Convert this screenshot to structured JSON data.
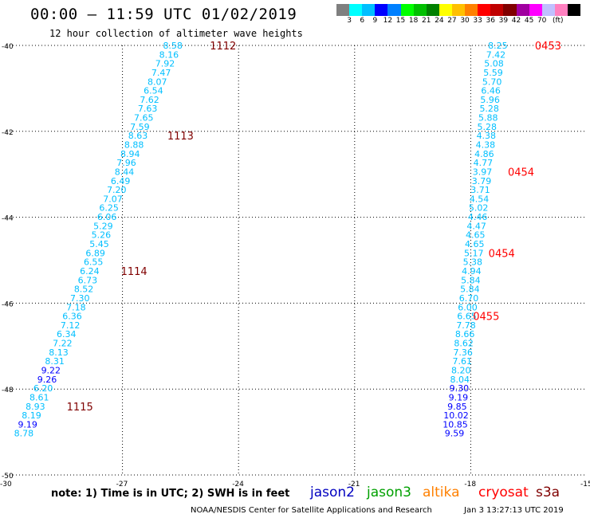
{
  "header": {
    "title": "00:00 – 11:59 UTC 01/02/2019",
    "subtitle": "12 hour collection of altimeter wave heights"
  },
  "colorbar": {
    "colors": [
      "#7f7f7f",
      "#00ffff",
      "#00bfff",
      "#0000ff",
      "#0080ff",
      "#00ff00",
      "#00c000",
      "#008000",
      "#ffff00",
      "#ffc000",
      "#ff8000",
      "#ff0000",
      "#c00000",
      "#800000",
      "#a000a0",
      "#ff00ff",
      "#c0c0ff",
      "#ff80c0",
      "#000000"
    ],
    "labels": [
      "3",
      "6",
      "9",
      "12",
      "15",
      "18",
      "21",
      "24",
      "27",
      "30",
      "33",
      "36",
      "39",
      "42",
      "45",
      "70",
      "(ft)"
    ]
  },
  "footer": {
    "note": "note: 1) Time is in UTC; 2) SWH is in feet",
    "credit": "NOAA/NESDIS Center for Satellite Applications and Research",
    "generated": "Jan  3 13:27:13 UTC 2019"
  },
  "legend": [
    {
      "name": "jason2",
      "color": "#0000c0"
    },
    {
      "name": "jason3",
      "color": "#00a000"
    },
    {
      "name": "altika",
      "color": "#ff8000"
    },
    {
      "name": "cryosat",
      "color": "#ff0000"
    },
    {
      "name": "s3a",
      "color": "#800000"
    }
  ],
  "chart_data": {
    "type": "scatter",
    "xlim": [
      -30,
      -15
    ],
    "ylim": [
      -50,
      -40
    ],
    "xticks": [
      -30,
      -27,
      -24,
      -21,
      -18,
      -15
    ],
    "yticks": [
      -50,
      -48,
      -46,
      -44,
      -42,
      -40
    ],
    "grid": true,
    "tracks": [
      {
        "name": "left-track",
        "points": [
          {
            "x": -25.7,
            "y": -40.0,
            "v": "8.58",
            "c": "#00bfff"
          },
          {
            "x": -25.8,
            "y": -40.21,
            "v": "8.16",
            "c": "#00bfff"
          },
          {
            "x": -25.9,
            "y": -40.42,
            "v": "7.92",
            "c": "#00bfff"
          },
          {
            "x": -26.0,
            "y": -40.63,
            "v": "7.47",
            "c": "#00bfff"
          },
          {
            "x": -26.1,
            "y": -40.84,
            "v": "8.07",
            "c": "#00bfff"
          },
          {
            "x": -26.2,
            "y": -41.05,
            "v": "6.54",
            "c": "#00bfff"
          },
          {
            "x": -26.3,
            "y": -41.26,
            "v": "7.62",
            "c": "#00bfff"
          },
          {
            "x": -26.35,
            "y": -41.47,
            "v": "7.63",
            "c": "#00bfff"
          },
          {
            "x": -26.45,
            "y": -41.68,
            "v": "7.65",
            "c": "#00bfff"
          },
          {
            "x": -26.55,
            "y": -41.89,
            "v": "7.59",
            "c": "#00bfff"
          },
          {
            "x": -26.6,
            "y": -42.1,
            "v": "8.63",
            "c": "#00bfff"
          },
          {
            "x": -26.7,
            "y": -42.31,
            "v": "8.88",
            "c": "#00bfff"
          },
          {
            "x": -26.8,
            "y": -42.52,
            "v": "8.94",
            "c": "#00bfff"
          },
          {
            "x": -26.9,
            "y": -42.73,
            "v": "7.96",
            "c": "#00bfff"
          },
          {
            "x": -26.95,
            "y": -42.94,
            "v": "8.44",
            "c": "#00bfff"
          },
          {
            "x": -27.05,
            "y": -43.15,
            "v": "6.49",
            "c": "#00bfff"
          },
          {
            "x": -27.15,
            "y": -43.36,
            "v": "7.20",
            "c": "#00bfff"
          },
          {
            "x": -27.25,
            "y": -43.57,
            "v": "7.07",
            "c": "#00bfff"
          },
          {
            "x": -27.35,
            "y": -43.78,
            "v": "6.25",
            "c": "#00bfff"
          },
          {
            "x": -27.4,
            "y": -43.99,
            "v": "6.06",
            "c": "#00bfff"
          },
          {
            "x": -27.5,
            "y": -44.2,
            "v": "5.29",
            "c": "#00bfff"
          },
          {
            "x": -27.55,
            "y": -44.41,
            "v": "5.26",
            "c": "#00bfff"
          },
          {
            "x": -27.6,
            "y": -44.62,
            "v": "5.45",
            "c": "#00bfff"
          },
          {
            "x": -27.7,
            "y": -44.83,
            "v": "6.89",
            "c": "#00bfff"
          },
          {
            "x": -27.75,
            "y": -45.04,
            "v": "6.55",
            "c": "#00bfff"
          },
          {
            "x": -27.85,
            "y": -45.25,
            "v": "6.24",
            "c": "#00bfff"
          },
          {
            "x": -27.9,
            "y": -45.46,
            "v": "6.73",
            "c": "#00bfff"
          },
          {
            "x": -28.0,
            "y": -45.67,
            "v": "8.52",
            "c": "#00bfff"
          },
          {
            "x": -28.1,
            "y": -45.88,
            "v": "7.30",
            "c": "#00bfff"
          },
          {
            "x": -28.2,
            "y": -46.09,
            "v": "7.18",
            "c": "#00bfff"
          },
          {
            "x": -28.3,
            "y": -46.3,
            "v": "6.36",
            "c": "#00bfff"
          },
          {
            "x": -28.35,
            "y": -46.51,
            "v": "7.12",
            "c": "#00bfff"
          },
          {
            "x": -28.45,
            "y": -46.72,
            "v": "6.34",
            "c": "#00bfff"
          },
          {
            "x": -28.55,
            "y": -46.93,
            "v": "7.22",
            "c": "#00bfff"
          },
          {
            "x": -28.65,
            "y": -47.14,
            "v": "8.13",
            "c": "#00bfff"
          },
          {
            "x": -28.75,
            "y": -47.35,
            "v": "8.31",
            "c": "#00bfff"
          },
          {
            "x": -28.85,
            "y": -47.56,
            "v": "9.22",
            "c": "#0000ff"
          },
          {
            "x": -28.95,
            "y": -47.77,
            "v": "9.26",
            "c": "#0000ff"
          },
          {
            "x": -29.05,
            "y": -47.98,
            "v": "6.20",
            "c": "#00bfff"
          },
          {
            "x": -29.15,
            "y": -48.19,
            "v": "8.61",
            "c": "#00bfff"
          },
          {
            "x": -29.25,
            "y": -48.4,
            "v": "8.93",
            "c": "#00bfff"
          },
          {
            "x": -29.35,
            "y": -48.61,
            "v": "8.19",
            "c": "#00bfff"
          },
          {
            "x": -29.45,
            "y": -48.82,
            "v": "9.19",
            "c": "#0000ff"
          },
          {
            "x": -29.55,
            "y": -49.03,
            "v": "8.78",
            "c": "#00bfff"
          }
        ],
        "times": [
          {
            "x": -24.4,
            "y": -40.0,
            "t": "1112",
            "c": "#800000"
          },
          {
            "x": -25.5,
            "y": -42.1,
            "t": "1113",
            "c": "#800000"
          },
          {
            "x": -26.7,
            "y": -45.25,
            "t": "1114",
            "c": "#800000"
          },
          {
            "x": -28.1,
            "y": -48.4,
            "t": "1115",
            "c": "#800000"
          }
        ]
      },
      {
        "name": "right-track",
        "points": [
          {
            "x": -17.3,
            "y": -40.0,
            "v": "8.25",
            "c": "#00bfff"
          },
          {
            "x": -17.35,
            "y": -40.21,
            "v": "7.42",
            "c": "#00bfff"
          },
          {
            "x": -17.4,
            "y": -40.42,
            "v": "5.08",
            "c": "#00bfff"
          },
          {
            "x": -17.42,
            "y": -40.63,
            "v": "5.59",
            "c": "#00bfff"
          },
          {
            "x": -17.45,
            "y": -40.84,
            "v": "5.70",
            "c": "#00bfff"
          },
          {
            "x": -17.48,
            "y": -41.05,
            "v": "6.46",
            "c": "#00bfff"
          },
          {
            "x": -17.5,
            "y": -41.26,
            "v": "5.96",
            "c": "#00bfff"
          },
          {
            "x": -17.52,
            "y": -41.47,
            "v": "5.28",
            "c": "#00bfff"
          },
          {
            "x": -17.55,
            "y": -41.68,
            "v": "5.88",
            "c": "#00bfff"
          },
          {
            "x": -17.58,
            "y": -41.89,
            "v": "5.28",
            "c": "#00bfff"
          },
          {
            "x": -17.6,
            "y": -42.1,
            "v": "4.38",
            "c": "#00bfff"
          },
          {
            "x": -17.62,
            "y": -42.31,
            "v": "4.38",
            "c": "#00bfff"
          },
          {
            "x": -17.65,
            "y": -42.52,
            "v": "4.86",
            "c": "#00bfff"
          },
          {
            "x": -17.68,
            "y": -42.73,
            "v": "4.77",
            "c": "#00bfff"
          },
          {
            "x": -17.7,
            "y": -42.94,
            "v": "3.97",
            "c": "#00bfff"
          },
          {
            "x": -17.72,
            "y": -43.15,
            "v": "3.79",
            "c": "#00bfff"
          },
          {
            "x": -17.75,
            "y": -43.36,
            "v": "3.71",
            "c": "#00bfff"
          },
          {
            "x": -17.78,
            "y": -43.57,
            "v": "4.54",
            "c": "#00bfff"
          },
          {
            "x": -17.8,
            "y": -43.78,
            "v": "5.02",
            "c": "#00bfff"
          },
          {
            "x": -17.82,
            "y": -43.99,
            "v": "4.46",
            "c": "#00bfff"
          },
          {
            "x": -17.85,
            "y": -44.2,
            "v": "4.47",
            "c": "#00bfff"
          },
          {
            "x": -17.88,
            "y": -44.41,
            "v": "4.65",
            "c": "#00bfff"
          },
          {
            "x": -17.9,
            "y": -44.62,
            "v": "4.65",
            "c": "#00bfff"
          },
          {
            "x": -17.92,
            "y": -44.83,
            "v": "5.17",
            "c": "#00bfff"
          },
          {
            "x": -17.95,
            "y": -45.04,
            "v": "5.38",
            "c": "#00bfff"
          },
          {
            "x": -17.98,
            "y": -45.25,
            "v": "4.94",
            "c": "#00bfff"
          },
          {
            "x": -18.0,
            "y": -45.46,
            "v": "5.84",
            "c": "#00bfff"
          },
          {
            "x": -18.02,
            "y": -45.67,
            "v": "5.84",
            "c": "#00bfff"
          },
          {
            "x": -18.05,
            "y": -45.88,
            "v": "6.70",
            "c": "#00bfff"
          },
          {
            "x": -18.08,
            "y": -46.09,
            "v": "6.00",
            "c": "#00bfff"
          },
          {
            "x": -18.1,
            "y": -46.3,
            "v": "6.65",
            "c": "#00bfff"
          },
          {
            "x": -18.12,
            "y": -46.51,
            "v": "7.78",
            "c": "#00bfff"
          },
          {
            "x": -18.15,
            "y": -46.72,
            "v": "8.66",
            "c": "#00bfff"
          },
          {
            "x": -18.18,
            "y": -46.93,
            "v": "8.62",
            "c": "#00bfff"
          },
          {
            "x": -18.2,
            "y": -47.14,
            "v": "7.36",
            "c": "#00bfff"
          },
          {
            "x": -18.22,
            "y": -47.35,
            "v": "7.61",
            "c": "#00bfff"
          },
          {
            "x": -18.25,
            "y": -47.56,
            "v": "8.20",
            "c": "#00bfff"
          },
          {
            "x": -18.28,
            "y": -47.77,
            "v": "8.04",
            "c": "#00bfff"
          },
          {
            "x": -18.3,
            "y": -47.98,
            "v": "9.30",
            "c": "#0000ff"
          },
          {
            "x": -18.32,
            "y": -48.19,
            "v": "9.19",
            "c": "#0000ff"
          },
          {
            "x": -18.35,
            "y": -48.4,
            "v": "9.85",
            "c": "#0000ff"
          },
          {
            "x": -18.38,
            "y": -48.61,
            "v": "10.02",
            "c": "#0000ff"
          },
          {
            "x": -18.4,
            "y": -48.82,
            "v": "10.85",
            "c": "#0000ff"
          },
          {
            "x": -18.42,
            "y": -49.03,
            "v": "9.59",
            "c": "#0000ff"
          }
        ],
        "times": [
          {
            "x": -16.0,
            "y": -40.0,
            "t": "0453",
            "c": "#ff0000"
          },
          {
            "x": -16.7,
            "y": -42.94,
            "t": "0454",
            "c": "#ff0000"
          },
          {
            "x": -17.2,
            "y": -44.83,
            "t": "0454",
            "c": "#ff0000"
          },
          {
            "x": -17.6,
            "y": -46.3,
            "t": "0455",
            "c": "#ff0000"
          }
        ]
      }
    ]
  }
}
